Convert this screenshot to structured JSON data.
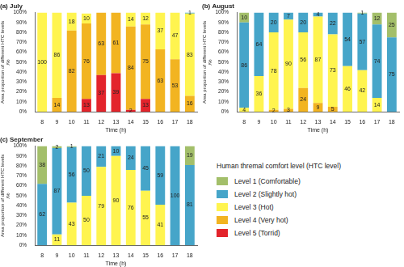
{
  "legend_title": "Human thremal comfort level (HTC level)",
  "chart_data": [
    {
      "type": "bar",
      "title": "(a) July",
      "x_label": "Time (h)",
      "y_label": [
        "Area proportion of different HTC levels",
        "/%"
      ],
      "categories": [
        8,
        9,
        10,
        11,
        12,
        13,
        14,
        15,
        16,
        17,
        18
      ],
      "stacked": true,
      "data_labels": true,
      "grid": false,
      "ylim": [
        0,
        100
      ],
      "yticks": [
        {
          "value": 0,
          "label": "0%"
        },
        {
          "value": 10,
          "label": "10%"
        },
        {
          "value": 20,
          "label": "20%"
        },
        {
          "value": 30,
          "label": "30%"
        },
        {
          "value": 40,
          "label": "40%"
        },
        {
          "value": 50,
          "label": "50%"
        },
        {
          "value": 60,
          "label": "60%"
        },
        {
          "value": 70,
          "label": "70%"
        },
        {
          "value": 80,
          "label": "80%"
        },
        {
          "value": 90,
          "label": "90%"
        },
        {
          "value": 100,
          "label": "100%"
        }
      ],
      "series": [
        {
          "name": "Level 1 (Comfortable)",
          "color": "#a3bf6a",
          "values": [
            null,
            null,
            null,
            null,
            null,
            null,
            null,
            null,
            null,
            null,
            null
          ]
        },
        {
          "name": "Level 2 (Slightly hot)",
          "color": "#46a5c9",
          "values": [
            null,
            null,
            null,
            null,
            null,
            null,
            null,
            null,
            null,
            null,
            1
          ]
        },
        {
          "name": "Level 3 (Hot)",
          "color": "#fff44f",
          "values": [
            100,
            86,
            18,
            10,
            null,
            null,
            14,
            12,
            37,
            47,
            83
          ]
        },
        {
          "name": "Level 4 (Very hot)",
          "color": "#f2b421",
          "values": [
            null,
            14,
            82,
            76,
            63,
            61,
            84,
            75,
            63,
            53,
            16
          ]
        },
        {
          "name": "Level 5 (Torrid)",
          "color": "#e3242b",
          "values": [
            null,
            null,
            null,
            13,
            37,
            39,
            2,
            13,
            null,
            null,
            null
          ]
        }
      ]
    },
    {
      "type": "bar",
      "title": "(b) August",
      "x_label": "Time (h)",
      "y_label": [
        "Area proportion of different HTC levels",
        "/%"
      ],
      "categories": [
        8,
        9,
        10,
        11,
        12,
        13,
        14,
        15,
        16,
        17,
        18
      ],
      "stacked": true,
      "data_labels": true,
      "grid": false,
      "ylim": [
        0,
        100
      ],
      "yticks": [
        {
          "value": 0,
          "label": "0%"
        },
        {
          "value": 10,
          "label": "10%"
        },
        {
          "value": 20,
          "label": "20%"
        },
        {
          "value": 30,
          "label": "30%"
        },
        {
          "value": 40,
          "label": "40%"
        },
        {
          "value": 50,
          "label": "50%"
        },
        {
          "value": 60,
          "label": "60%"
        },
        {
          "value": 70,
          "label": "70%"
        },
        {
          "value": 80,
          "label": "80%"
        },
        {
          "value": 90,
          "label": "90%"
        },
        {
          "value": 100,
          "label": "100%"
        }
      ],
      "series": [
        {
          "name": "Level 1 (Comfortable)",
          "color": "#a3bf6a",
          "values": [
            10,
            null,
            null,
            null,
            null,
            null,
            null,
            null,
            1,
            12,
            25
          ]
        },
        {
          "name": "Level 2 (Slightly hot)",
          "color": "#46a5c9",
          "values": [
            86,
            64,
            20,
            7,
            20,
            4,
            22,
            54,
            57,
            74,
            75
          ]
        },
        {
          "name": "Level 3 (Hot)",
          "color": "#fff44f",
          "values": [
            4,
            36,
            78,
            90,
            56,
            87,
            73,
            46,
            42,
            14,
            null
          ]
        },
        {
          "name": "Level 4 (Very hot)",
          "color": "#f2b421",
          "values": [
            null,
            null,
            2,
            3,
            24,
            9,
            5,
            null,
            null,
            null,
            null
          ]
        },
        {
          "name": "Level 5 (Torrid)",
          "color": "#e3242b",
          "values": [
            null,
            null,
            null,
            null,
            null,
            null,
            null,
            null,
            null,
            null,
            null
          ]
        }
      ]
    },
    {
      "type": "bar",
      "title": "(c) September",
      "x_label": "Time (h)",
      "y_label": [
        "Area proportion of different HTC levels",
        "/%"
      ],
      "categories": [
        8,
        9,
        10,
        11,
        12,
        13,
        14,
        15,
        16,
        17,
        18
      ],
      "stacked": true,
      "data_labels": true,
      "grid": false,
      "ylim": [
        0,
        100
      ],
      "yticks": [
        {
          "value": 0,
          "label": "0%"
        },
        {
          "value": 10,
          "label": "10%"
        },
        {
          "value": 20,
          "label": "20%"
        },
        {
          "value": 30,
          "label": "30%"
        },
        {
          "value": 40,
          "label": "40%"
        },
        {
          "value": 50,
          "label": "50%"
        },
        {
          "value": 60,
          "label": "60%"
        },
        {
          "value": 70,
          "label": "70%"
        },
        {
          "value": 80,
          "label": "80%"
        },
        {
          "value": 90,
          "label": "90%"
        },
        {
          "value": 100,
          "label": "100%"
        }
      ],
      "series": [
        {
          "name": "Level 1 (Comfortable)",
          "color": "#a3bf6a",
          "values": [
            38,
            2,
            1,
            null,
            null,
            null,
            null,
            null,
            null,
            null,
            19
          ]
        },
        {
          "name": "Level 2 (Slightly hot)",
          "color": "#46a5c9",
          "values": [
            62,
            87,
            56,
            50,
            21,
            10,
            24,
            45,
            59,
            100,
            81
          ]
        },
        {
          "name": "Level 3 (Hot)",
          "color": "#fff44f",
          "values": [
            null,
            11,
            43,
            50,
            79,
            90,
            76,
            55,
            41,
            null,
            null
          ]
        },
        {
          "name": "Level 4 (Very hot)",
          "color": "#f2b421",
          "values": [
            null,
            null,
            null,
            null,
            null,
            null,
            null,
            null,
            null,
            null,
            null
          ]
        },
        {
          "name": "Level 5 (Torrid)",
          "color": "#e3242b",
          "values": [
            null,
            null,
            null,
            null,
            null,
            null,
            null,
            null,
            null,
            null,
            null
          ]
        }
      ]
    }
  ]
}
